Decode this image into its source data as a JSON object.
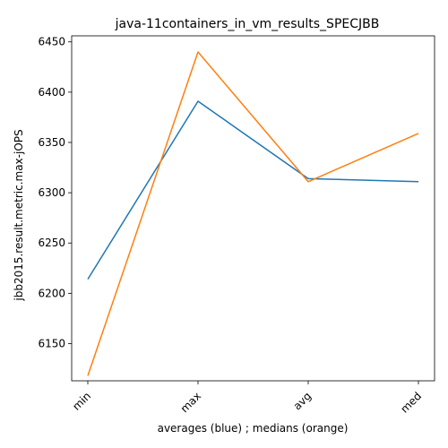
{
  "chart_data": {
    "type": "line",
    "title": "java-11containers_in_vm_results_SPECJBB",
    "xlabel": "averages (blue) ; medians (orange)",
    "ylabel": "jbb2015.result.metric.max-jOPS",
    "categories": [
      "min",
      "max",
      "avg",
      "med"
    ],
    "series": [
      {
        "color": "#1f77b4",
        "values": [
          6214,
          6391,
          6314,
          6311
        ]
      },
      {
        "color": "#ff7f0e",
        "values": [
          6118,
          6440,
          6311,
          6359
        ]
      }
    ],
    "ylim": [
      6113,
      6456
    ],
    "yticks": [
      "6150",
      "6200",
      "6250",
      "6300",
      "6350",
      "6400",
      "6450"
    ],
    "legend": "none",
    "grid": false
  }
}
